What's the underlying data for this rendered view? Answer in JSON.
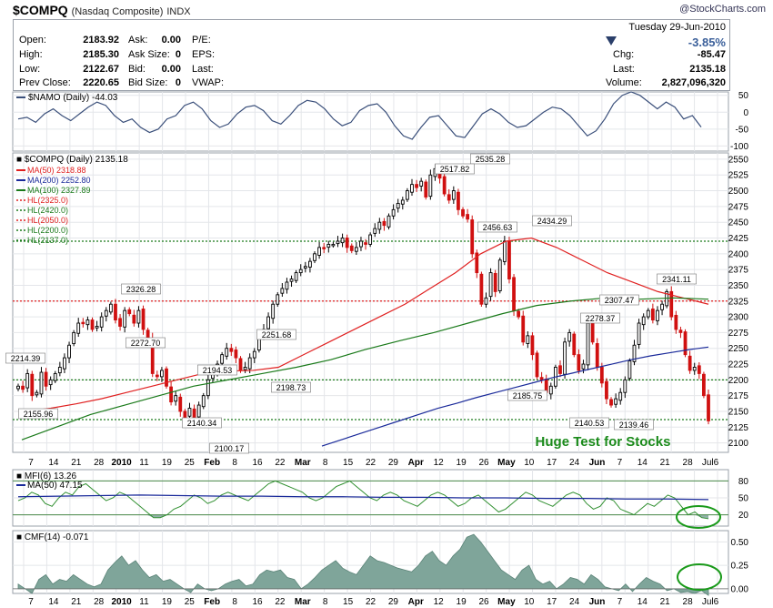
{
  "header": {
    "symbol": "$COMPQ",
    "name": "(Nasdaq Composite)",
    "exchange": "INDX",
    "watermark": "@StockCharts.com"
  },
  "quote": {
    "open_label": "Open:",
    "open": "2183.92",
    "high_label": "High:",
    "high": "2185.30",
    "low_label": "Low:",
    "low": "2122.67",
    "prev_label": "Prev Close:",
    "prev": "2220.65",
    "ask_label": "Ask:",
    "ask": "0.00",
    "asksize_label": "Ask Size:",
    "asksize": "0",
    "bid_label": "Bid:",
    "bid": "0.00",
    "bidsize_label": "Bid Size:",
    "bidsize": "0",
    "pe_label": "P/E:",
    "eps_label": "EPS:",
    "last2_label": "Last:",
    "vwap_label": "VWAP:",
    "date": "Tuesday   29-Jun-2010",
    "pct_change": "-3.85%",
    "chg_label": "Chg:",
    "chg": "-85.47",
    "last_label": "Last:",
    "last": "2135.18",
    "volume_label": "Volume:",
    "volume": "2,827,096,320"
  },
  "colors": {
    "up": "#000000",
    "down": "#d01010",
    "ma50": "#e02020",
    "ma200": "#1a2a9a",
    "ma100": "#1a7a1a",
    "hl_red": "#e02020",
    "hl_green": "#1a7a1a",
    "namo": "#3a4f7a",
    "panel_fill": "#7fa59a",
    "mfi_line": "#2f8f2f",
    "annotation": "#1a8a1a",
    "circle": "#1a9a1a",
    "arrow_down": "#2a3f6a"
  },
  "chart_data": [
    {
      "type": "line",
      "indicator": "$NAMO (Daily) -44.03",
      "ylim": [
        -115,
        60
      ],
      "yticks": [
        50,
        0,
        -50,
        -100
      ],
      "values": [
        -20,
        -15,
        -30,
        -5,
        10,
        -10,
        -25,
        -5,
        15,
        30,
        20,
        -10,
        -30,
        -20,
        -45,
        -60,
        -50,
        -20,
        -10,
        20,
        30,
        10,
        -25,
        -45,
        -35,
        -5,
        15,
        20,
        5,
        -25,
        -35,
        -10,
        20,
        35,
        30,
        10,
        -20,
        -40,
        -30,
        5,
        20,
        25,
        0,
        -40,
        -70,
        -80,
        -45,
        -15,
        -10,
        -40,
        -70,
        -75,
        -40,
        -5,
        10,
        -5,
        -30,
        -45,
        -40,
        -20,
        0,
        15,
        10,
        -10,
        -40,
        -70,
        -55,
        -20,
        25,
        50,
        60,
        50,
        30,
        10,
        30,
        15,
        -20,
        -10,
        -44
      ]
    },
    {
      "type": "candlestick",
      "title": "$COMPQ (Daily) 2135.18",
      "ylim": [
        2085,
        2560
      ],
      "yticks": [
        2550,
        2525,
        2500,
        2475,
        2450,
        2425,
        2400,
        2375,
        2350,
        2325,
        2300,
        2275,
        2250,
        2225,
        2200,
        2175,
        2150,
        2125,
        2100
      ],
      "x_labels": [
        "7",
        "14",
        "21",
        "28",
        "2010",
        "11",
        "19",
        "25",
        "Feb",
        "8",
        "16",
        "22",
        "Mar",
        "8",
        "15",
        "22",
        "29",
        "Apr",
        "12",
        "19",
        "26",
        "May",
        "10",
        "17",
        "24",
        "Jun",
        "7",
        "14",
        "21",
        "28",
        "Jul6"
      ],
      "closes": [
        2190,
        2185,
        2210,
        2175,
        2180,
        2212,
        2190,
        2200,
        2210,
        2220,
        2235,
        2255,
        2275,
        2290,
        2290,
        2295,
        2280,
        2285,
        2300,
        2310,
        2320,
        2295,
        2285,
        2310,
        2305,
        2290,
        2310,
        2280,
        2265,
        2210,
        2205,
        2215,
        2190,
        2165,
        2175,
        2150,
        2140,
        2155,
        2140,
        2160,
        2175,
        2200,
        2215,
        2225,
        2240,
        2250,
        2245,
        2235,
        2215,
        2220,
        2235,
        2245,
        2270,
        2280,
        2300,
        2320,
        2335,
        2345,
        2355,
        2360,
        2370,
        2375,
        2380,
        2388,
        2400,
        2410,
        2408,
        2415,
        2415,
        2420,
        2425,
        2410,
        2405,
        2410,
        2420,
        2415,
        2430,
        2440,
        2450,
        2445,
        2460,
        2470,
        2480,
        2485,
        2500,
        2510,
        2505,
        2515,
        2490,
        2525,
        2535,
        2520,
        2495,
        2485,
        2500,
        2470,
        2460,
        2455,
        2400,
        2370,
        2320,
        2330,
        2370,
        2340,
        2390,
        2420,
        2360,
        2310,
        2300,
        2260,
        2270,
        2240,
        2205,
        2200,
        2180,
        2190,
        2220,
        2210,
        2260,
        2275,
        2240,
        2215,
        2225,
        2290,
        2260,
        2220,
        2195,
        2170,
        2160,
        2170,
        2180,
        2200,
        2230,
        2255,
        2290,
        2300,
        2310,
        2295,
        2310,
        2320,
        2340,
        2300,
        2280,
        2275,
        2240,
        2215,
        2220,
        2210,
        2175,
        2135
      ],
      "series": [
        {
          "name": "MA(50) 2318.88",
          "values": [
            2150,
            2155,
            2162,
            2170,
            2180,
            2190,
            2200,
            2210,
            2214,
            2215,
            2220,
            2240,
            2260,
            2280,
            2300,
            2320,
            2345,
            2370,
            2400,
            2420,
            2425,
            2410,
            2390,
            2370,
            2355,
            2340,
            2330,
            2320
          ]
        },
        {
          "name": "MA(200) 2252.80",
          "values": [
            2095,
            2105,
            2115,
            2125,
            2135,
            2145,
            2155,
            2163,
            2172,
            2180,
            2188,
            2196,
            2204,
            2211,
            2218,
            2225,
            2232,
            2238,
            2243,
            2248,
            2252
          ]
        },
        {
          "name": "MA(100) 2327.89",
          "values": [
            2105,
            2125,
            2145,
            2160,
            2175,
            2190,
            2200,
            2210,
            2220,
            2232,
            2248,
            2262,
            2275,
            2290,
            2305,
            2318,
            2325,
            2330,
            2328,
            2330,
            2328
          ]
        }
      ],
      "horizontal_lines": [
        {
          "name": "HL(2325.0)",
          "value": 2325
        },
        {
          "name": "HL(2420.0)",
          "value": 2420
        },
        {
          "name": "HL(2050.0)",
          "value": 2050
        },
        {
          "name": "HL(2200.0)",
          "value": 2200
        },
        {
          "name": "HL(2137.0)",
          "value": 2137
        }
      ],
      "annotations": [
        "2535.28",
        "2517.82",
        "2456.63",
        "2434.29",
        "2341.11",
        "2326.28",
        "2307.47",
        "2278.37",
        "2272.70",
        "2251.68",
        "2214.39",
        "2194.53",
        "2198.73",
        "2185.75",
        "2155.96",
        "2140.34",
        "2140.53",
        "2139.46",
        "2100.17"
      ],
      "note": "Huge Test for Stocks"
    },
    {
      "type": "area",
      "indicator": "MFI(6) 13.26",
      "ma_label": "MA(50) 47.15",
      "ylim": [
        0,
        100
      ],
      "yticks": [
        80,
        50,
        20
      ],
      "values": [
        45,
        50,
        60,
        55,
        40,
        35,
        50,
        60,
        55,
        70,
        75,
        65,
        55,
        45,
        50,
        60,
        55,
        45,
        35,
        25,
        15,
        15,
        20,
        30,
        35,
        45,
        55,
        50,
        40,
        45,
        55,
        60,
        55,
        50,
        45,
        55,
        65,
        75,
        80,
        75,
        70,
        65,
        60,
        50,
        45,
        50,
        60,
        70,
        75,
        80,
        70,
        60,
        50,
        45,
        55,
        60,
        55,
        45,
        40,
        35,
        45,
        55,
        60,
        55,
        45,
        35,
        40,
        50,
        55,
        45,
        35,
        25,
        30,
        40,
        50,
        60,
        55,
        45,
        40,
        35,
        45,
        55,
        60,
        55,
        40,
        30,
        35,
        50,
        45,
        30,
        25,
        20,
        30,
        40,
        35,
        45,
        55,
        50,
        35,
        20,
        25,
        15,
        13
      ],
      "ma_values": [
        52,
        53,
        54,
        55,
        54,
        53,
        53,
        52,
        52,
        51,
        51,
        50,
        50,
        49,
        49,
        48,
        48,
        47
      ]
    },
    {
      "type": "area",
      "indicator": "CMF(14) -0.071",
      "ylim": [
        -0.05,
        0.62
      ],
      "yticks": [
        0.5,
        0.25,
        0.0
      ],
      "values": [
        0.05,
        0.0,
        -0.05,
        0.1,
        0.15,
        0.05,
        0.1,
        0.08,
        0.15,
        0.1,
        0.05,
        0.02,
        0.05,
        0.2,
        0.28,
        0.35,
        0.25,
        0.3,
        0.2,
        0.12,
        0.15,
        0.08,
        0.1,
        0.05,
        0.0,
        -0.04,
        0.05,
        0.0,
        -0.02,
        0.0,
        0.05,
        0.08,
        0.1,
        0.03,
        0.05,
        0.15,
        0.2,
        0.18,
        0.2,
        0.12,
        0.1,
        0.0,
        0.05,
        0.12,
        0.2,
        0.25,
        0.3,
        0.22,
        0.18,
        0.15,
        0.25,
        0.35,
        0.3,
        0.28,
        0.25,
        0.22,
        0.2,
        0.18,
        0.25,
        0.35,
        0.4,
        0.3,
        0.25,
        0.35,
        0.42,
        0.55,
        0.58,
        0.5,
        0.4,
        0.3,
        0.2,
        0.15,
        0.1,
        0.2,
        0.25,
        0.1,
        0.05,
        0.08,
        0.0,
        0.05,
        0.12,
        0.1,
        0.05,
        0.15,
        0.1,
        0.02,
        0.0,
        -0.02,
        0.05,
        -0.03,
        0.05,
        0.12,
        0.08,
        0.05,
        -0.02,
        0.0,
        -0.04,
        -0.03,
        -0.05,
        -0.02,
        -0.07
      ]
    }
  ]
}
